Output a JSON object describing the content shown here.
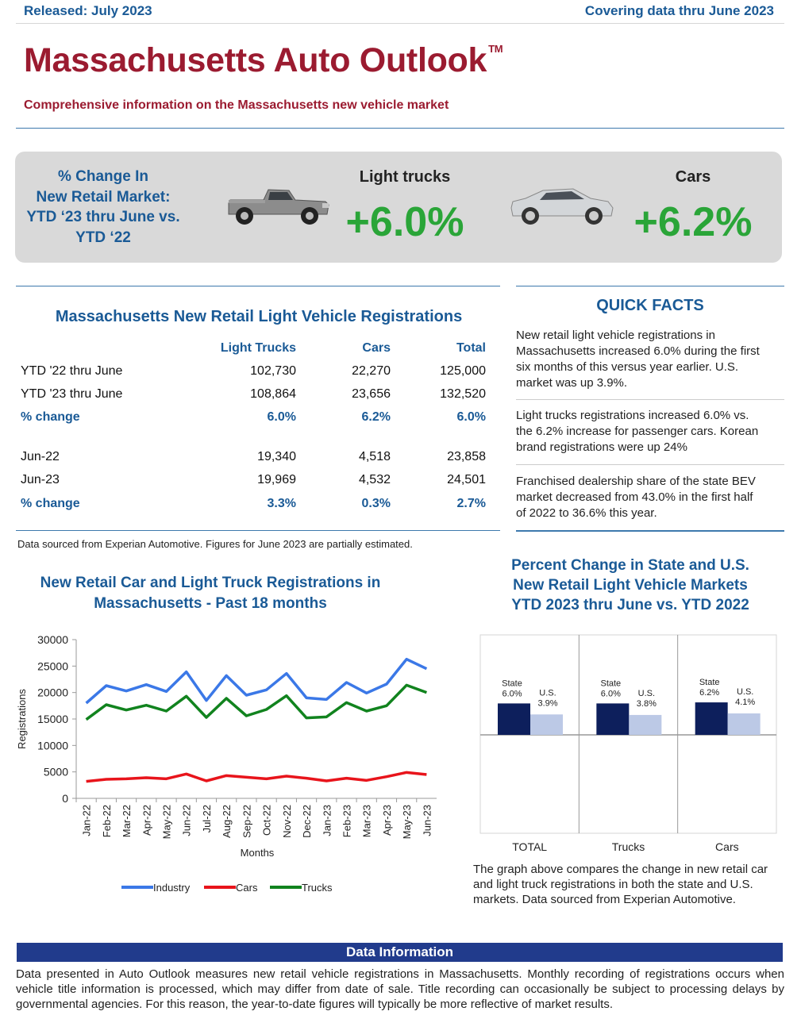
{
  "header": {
    "released": "Released: July 2023",
    "covering": "Covering data thru June 2023",
    "title": "Massachusetts Auto Outlook",
    "trademark": "TM",
    "subtitle": "Comprehensive information on the Massachusetts new vehicle market"
  },
  "banner": {
    "label_lines": [
      "% Change In",
      "New Retail Market:",
      "YTD ‘23 thru June vs.",
      "YTD ‘22"
    ],
    "light_trucks_label": "Light trucks",
    "light_trucks_value": "+6.0%",
    "cars_label": "Cars",
    "cars_value": "+6.2%",
    "truck_icon": "pickup-truck-icon",
    "car_icon": "sedan-car-icon"
  },
  "registrations": {
    "title": "Massachusetts New Retail Light Vehicle Registrations",
    "columns": [
      "Light Trucks",
      "Cars",
      "Total"
    ],
    "rows": [
      {
        "label": "YTD '22 thru June",
        "values": [
          "102,730",
          "22,270",
          "125,000"
        ]
      },
      {
        "label": "YTD '23 thru June",
        "values": [
          "108,864",
          "23,656",
          "132,520"
        ]
      },
      {
        "label": "% change",
        "values": [
          "6.0%",
          "6.2%",
          "6.0%"
        ]
      },
      {
        "label": "Jun-22",
        "values": [
          "19,340",
          "4,518",
          "23,858"
        ]
      },
      {
        "label": "Jun-23",
        "values": [
          "19,969",
          "4,532",
          "24,501"
        ]
      },
      {
        "label": "% change",
        "values": [
          "3.3%",
          "0.3%",
          "2.7%"
        ]
      }
    ]
  },
  "quick_facts": {
    "title": "QUICK FACTS",
    "items": [
      [
        "New retail light vehicle registrations in",
        "Massachusetts increased 6.0% during the first",
        "six months of this versus year earlier. U.S.",
        "market was up 3.9%."
      ],
      [
        "Light trucks registrations increased 6.0% vs.",
        "the 6.2% increase for passenger cars. Korean",
        "brand registrations were up 24%"
      ],
      [
        "Franchised dealership share of the state BEV",
        "market decreased from 43.0% in the first half",
        "of 2022 to 36.6% this year."
      ]
    ]
  },
  "source_note": "Data sourced from Experian Automotive. Figures for June 2023 are partially estimated.",
  "line_chart_title": [
    "New Retail Car and Light Truck Registrations in",
    "Massachusetts - Past 18 months"
  ],
  "bar_chart_title": [
    "Percent Change in State and U.S.",
    "New Retail Light Vehicle Markets",
    "YTD 2023 thru June vs. YTD 2022"
  ],
  "bar_chart_caption": [
    "The graph above compares the change in new retail car",
    "and light truck registrations in both the state and U.S.",
    "markets. Data sourced from Experian Automotive."
  ],
  "data_info": {
    "heading": "Data Information",
    "text": "Data presented in Auto Outlook measures new retail vehicle registrations in Massachusetts. Monthly recording of registrations occurs when vehicle title information is processed, which may differ from date of sale. Title recording can occasionally be subject to processing delays by governmental agencies. For this reason, the year-to-date figures will typically be more reflective of market results."
  },
  "chart_data": [
    {
      "type": "line",
      "title": "New Retail Car and Light Truck Registrations in Massachusetts - Past 18 months",
      "xlabel": "Months",
      "ylabel": "Registrations",
      "ylim": [
        0,
        30000
      ],
      "yticks": [
        "0",
        "5000",
        "10000",
        "15000",
        "20000",
        "25000",
        "30000"
      ],
      "categories": [
        "Jan-22",
        "Feb-22",
        "Mar-22",
        "Apr-22",
        "May-22",
        "Jun-22",
        "Jul-22",
        "Aug-22",
        "Sep-22",
        "Oct-22",
        "Nov-22",
        "Dec-22",
        "Jan-23",
        "Feb-23",
        "Mar-23",
        "Apr-23",
        "May-23",
        "Jun-23"
      ],
      "legend": "bottom",
      "grid": false,
      "series": [
        {
          "name": "Industry",
          "color": "#3b78e7",
          "values": [
            18000,
            21300,
            20300,
            21500,
            20200,
            23900,
            18500,
            23200,
            19500,
            20500,
            23600,
            19000,
            18700,
            21900,
            19900,
            21600,
            26300,
            24500
          ]
        },
        {
          "name": "Cars",
          "color": "#e8141b",
          "values": [
            3200,
            3600,
            3700,
            3900,
            3700,
            4600,
            3300,
            4300,
            4000,
            3700,
            4200,
            3800,
            3300,
            3800,
            3400,
            4100,
            4900,
            4500
          ]
        },
        {
          "name": "Trucks",
          "color": "#11831e",
          "values": [
            14900,
            17700,
            16700,
            17600,
            16500,
            19300,
            15300,
            18900,
            15600,
            16800,
            19400,
            15200,
            15400,
            18100,
            16500,
            17500,
            21400,
            20000
          ]
        }
      ]
    },
    {
      "type": "bar",
      "title": "Percent Change in State and U.S. New Retail Light Vehicle Markets YTD 2023 thru June vs. YTD 2022",
      "categories": [
        "TOTAL",
        "Trucks",
        "Cars"
      ],
      "series": [
        {
          "name": "State",
          "color": "#0d1f5c",
          "values": [
            6.0,
            6.0,
            6.2
          ],
          "labels": [
            "6.0%",
            "6.0%",
            "6.2%"
          ]
        },
        {
          "name": "U.S.",
          "color": "#bcc9e6",
          "values": [
            3.9,
            3.8,
            4.1
          ],
          "labels": [
            "3.9%",
            "3.8%",
            "4.1%"
          ]
        }
      ]
    }
  ]
}
